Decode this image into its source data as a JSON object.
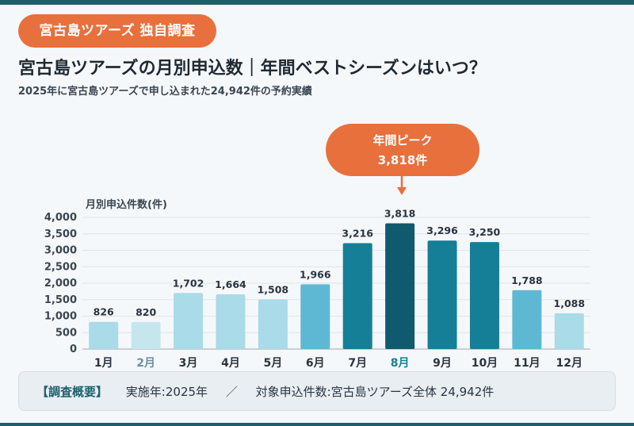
{
  "badge": "宮古島ツアーズ 独自調査",
  "title": "宮古島ツアーズの月別申込数｜年間ベストシーズンはいつ？",
  "subtitle": "2025年に宮古島ツアーズで申し込まれた24,942件の予約実績",
  "peak_callout": {
    "label": "年間ピーク",
    "value": "3,818件",
    "color": "#e8703c"
  },
  "chart_data": {
    "type": "bar",
    "ylabel": "月別申込件数(件)",
    "ylim": [
      0,
      4000
    ],
    "yticks": [
      0,
      500,
      1000,
      1500,
      2000,
      2500,
      3000,
      3500,
      4000
    ],
    "ytick_labels": [
      "0",
      "500",
      "1,000",
      "1,500",
      "2,000",
      "2,500",
      "3,000",
      "3,500",
      "4,000"
    ],
    "grid": true,
    "categories": [
      "1月",
      "2月",
      "3月",
      "4月",
      "5月",
      "6月",
      "7月",
      "8月",
      "9月",
      "10月",
      "11月",
      "12月"
    ],
    "values": [
      826,
      820,
      1702,
      1664,
      1508,
      1966,
      3216,
      3818,
      3296,
      3250,
      1788,
      1088
    ],
    "value_labels": [
      "826",
      "820",
      "1,702",
      "1,664",
      "1,508",
      "1,966",
      "3,216",
      "3,818",
      "3,296",
      "3,250",
      "1,788",
      "1,088"
    ],
    "bar_colors": [
      "#a9dbe8",
      "#c6e6ee",
      "#a9dbe8",
      "#a9dbe8",
      "#a9dbe8",
      "#5fb8d3",
      "#157f98",
      "#0f5a6d",
      "#157f98",
      "#157f98",
      "#5fb8d3",
      "#a9dbe8"
    ],
    "highlight_colors": {
      "low_month_label": "#6d8fa3",
      "peak_month_label": "#157f98",
      "default_label": "#2a3440"
    }
  },
  "footer": {
    "heading": "【調査概要】",
    "year": "実施年:2025年",
    "separator": "／",
    "scope": "対象申込件数:宮古島ツアーズ全体 24,942件"
  }
}
